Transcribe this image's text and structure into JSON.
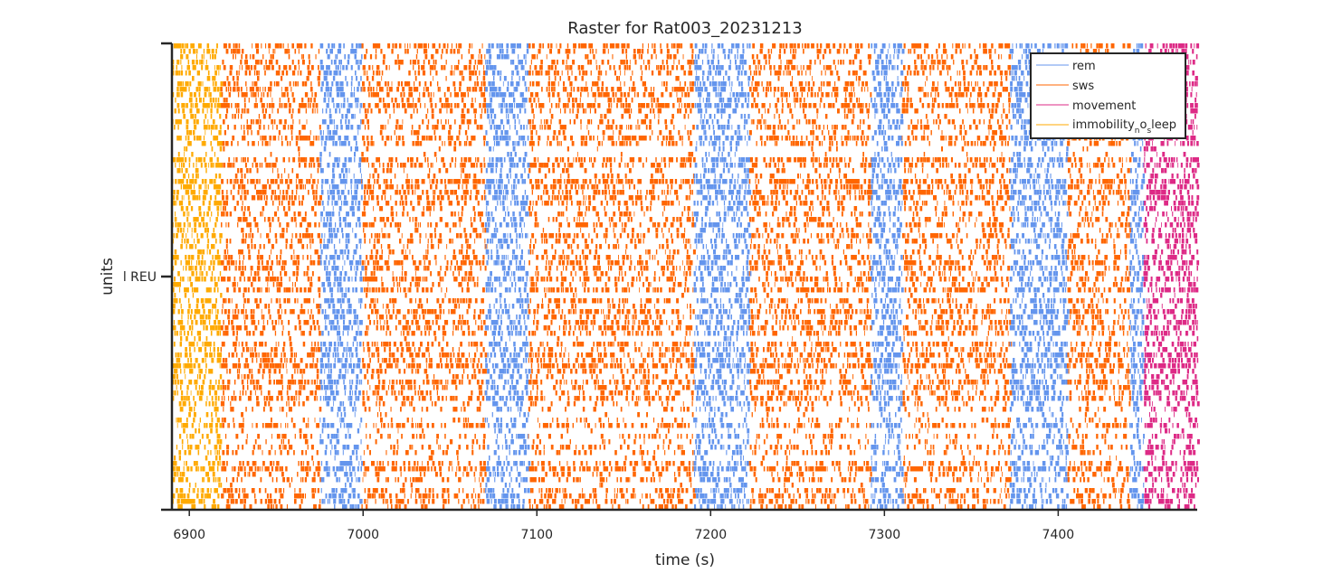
{
  "chart_data": {
    "type": "raster",
    "title": "Raster for Rat003_20231213",
    "xlabel": "time (s)",
    "ylabel": "units",
    "xlim": [
      6890,
      7480
    ],
    "x_ticks": [
      6900,
      7000,
      7100,
      7200,
      7300,
      7400
    ],
    "x_tick_labels": [
      "6900",
      "7000",
      "7100",
      "7200",
      "7300",
      "7400"
    ],
    "y_tick_labels": [
      "l REU"
    ],
    "grid": false,
    "legend_position": "top-right",
    "legend": [
      {
        "label": "rem",
        "color": "#6495ed"
      },
      {
        "label": "sws",
        "color": "#ff6600"
      },
      {
        "label": "movement",
        "color": "#dd2a86"
      },
      {
        "label": "immobility",
        "sub1": "n",
        "mid": "o",
        "sub2": "s",
        "tail": "leep",
        "color": "#ffaa00"
      }
    ],
    "state_epochs": [
      {
        "state": "immobility_no_sleep",
        "start": 6890,
        "end": 6918
      },
      {
        "state": "sws",
        "start": 6918,
        "end": 6975
      },
      {
        "state": "rem",
        "start": 6975,
        "end": 6999
      },
      {
        "state": "sws",
        "start": 6999,
        "end": 7070
      },
      {
        "state": "rem",
        "start": 7070,
        "end": 7095
      },
      {
        "state": "sws",
        "start": 7095,
        "end": 7190
      },
      {
        "state": "rem",
        "start": 7190,
        "end": 7222
      },
      {
        "state": "sws",
        "start": 7222,
        "end": 7292
      },
      {
        "state": "rem",
        "start": 7292,
        "end": 7310
      },
      {
        "state": "sws",
        "start": 7310,
        "end": 7372
      },
      {
        "state": "rem",
        "start": 7372,
        "end": 7405
      },
      {
        "state": "sws",
        "start": 7405,
        "end": 7441
      },
      {
        "state": "rem",
        "start": 7441,
        "end": 7449
      },
      {
        "state": "movement",
        "start": 7449,
        "end": 7480
      }
    ],
    "colors": {
      "rem": "#6495ed",
      "sws": "#ff6600",
      "movement": "#dd2a86",
      "immobility_no_sleep": "#ffaa00",
      "axis": "#262626"
    }
  }
}
